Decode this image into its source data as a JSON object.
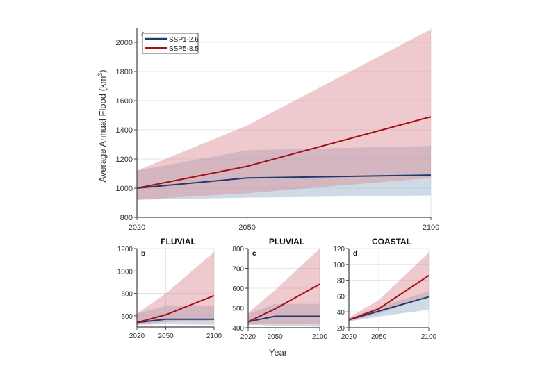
{
  "colors": {
    "ssp126": "#1f3a6e",
    "ssp585": "#a50f15",
    "ssp126_band": "#9fb6cf",
    "ssp585_band": "#d98a93",
    "grid": "#dddddd",
    "axis": "#444444"
  },
  "chart_data": [
    {
      "id": "a",
      "type": "area",
      "panel_letter": "a",
      "title": "",
      "xlabel": "",
      "ylabel": "Average Annual Flood (km³)",
      "ylabel_main": "Average Annual Flood (km",
      "ylabel_sup": "3",
      "ylabel_close": ")",
      "x": [
        2020,
        2050,
        2100
      ],
      "xticks": [
        "2020",
        "2050",
        "2100"
      ],
      "ylim": [
        800,
        2100
      ],
      "yticks": [
        800,
        1000,
        1200,
        1400,
        1600,
        1800,
        2000
      ],
      "grid": true,
      "legend": {
        "placement": "top-left",
        "entries": [
          "SSP1-2.6",
          "SSP5-8.5"
        ]
      },
      "series": [
        {
          "name": "SSP1-2.6",
          "values": [
            1000,
            1070,
            1090
          ],
          "lower": [
            920,
            935,
            950
          ],
          "upper": [
            1120,
            1260,
            1290
          ]
        },
        {
          "name": "SSP5-8.5",
          "values": [
            1000,
            1150,
            1490
          ],
          "lower": [
            920,
            965,
            1070
          ],
          "upper": [
            1120,
            1430,
            2090
          ]
        }
      ]
    },
    {
      "id": "b",
      "type": "area",
      "panel_letter": "b",
      "title": "FLUVIAL",
      "x": [
        2020,
        2050,
        2100
      ],
      "xticks": [
        "2020",
        "2050",
        "2100"
      ],
      "ylim": [
        500,
        1200
      ],
      "yticks": [
        600,
        800,
        1000,
        1200
      ],
      "grid": true,
      "series": [
        {
          "name": "SSP1-2.6",
          "values": [
            540,
            570,
            570
          ],
          "lower": [
            520,
            525,
            520
          ],
          "upper": [
            620,
            690,
            690
          ]
        },
        {
          "name": "SSP5-8.5",
          "values": [
            540,
            610,
            780
          ],
          "lower": [
            520,
            545,
            560
          ],
          "upper": [
            620,
            800,
            1170
          ]
        }
      ]
    },
    {
      "id": "c",
      "type": "area",
      "panel_letter": "c",
      "title": "PLUVIAL",
      "x": [
        2020,
        2050,
        2100
      ],
      "xticks": [
        "2020",
        "2050",
        "2100"
      ],
      "ylim": [
        400,
        800
      ],
      "yticks": [
        400,
        500,
        600,
        700,
        800
      ],
      "grid": true,
      "series": [
        {
          "name": "SSP1-2.6",
          "values": [
            430,
            458,
            458
          ],
          "lower": [
            415,
            410,
            405
          ],
          "upper": [
            470,
            520,
            520
          ]
        },
        {
          "name": "SSP5-8.5",
          "values": [
            430,
            495,
            620
          ],
          "lower": [
            415,
            420,
            420
          ],
          "upper": [
            475,
            590,
            800
          ]
        }
      ]
    },
    {
      "id": "d",
      "type": "area",
      "panel_letter": "d",
      "title": "COASTAL",
      "x": [
        2020,
        2050,
        2100
      ],
      "xticks": [
        "2020",
        "2050",
        "2100"
      ],
      "ylim": [
        20,
        120
      ],
      "yticks": [
        20,
        40,
        60,
        80,
        100,
        120
      ],
      "grid": true,
      "series": [
        {
          "name": "SSP1-2.6",
          "values": [
            30,
            41,
            59
          ],
          "lower": [
            28,
            34,
            43
          ],
          "upper": [
            32,
            46,
            66
          ]
        },
        {
          "name": "SSP5-8.5",
          "values": [
            30,
            44,
            86
          ],
          "lower": [
            28,
            38,
            60
          ],
          "upper": [
            33,
            55,
            115
          ]
        }
      ]
    }
  ],
  "shared_xlabel": "Year"
}
